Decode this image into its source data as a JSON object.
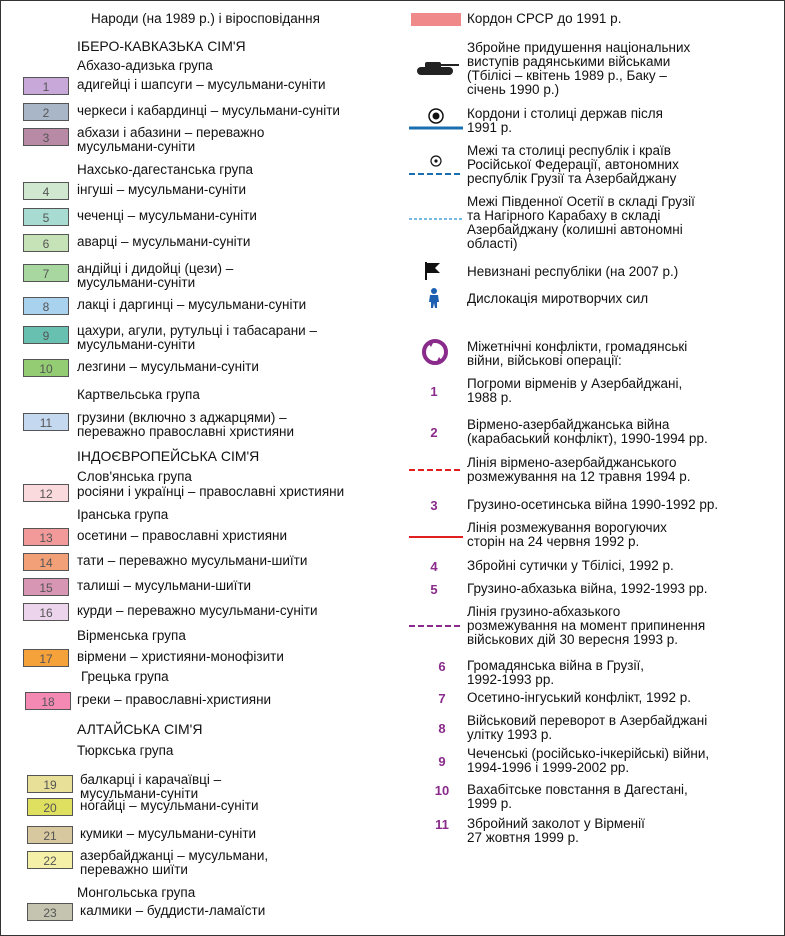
{
  "left": {
    "title": "Народи (на 1989 р.) і віросповідання",
    "fam1": "ІБЕРО-КАВКАЗЬКА СІМ'Я",
    "g_abkh": "Абхазо-адизька група",
    "g_nakh": "Нахсько-дагестанська група",
    "g_kart": "Картвельська група",
    "fam2": "ІНДОЄВРОПЕЙСЬКА СІМ'Я",
    "g_slav": "Слов'янська група",
    "g_iran": "Іранська група",
    "g_arm": "Вірменська група",
    "g_greek": "Грецька група",
    "fam3": "АЛТАЙСЬКА СІМ'Я",
    "g_turk": "Тюркська група",
    "g_mong": "Монгольська група",
    "items": [
      {
        "n": "1",
        "color": "#c8a8d8",
        "text": "адигейці і шапсуги – мусульмани-суніти"
      },
      {
        "n": "2",
        "color": "#a9b6c8",
        "text": "черкеси і кабардинці – мусульмани-суніти"
      },
      {
        "n": "3",
        "color": "#b88aa6",
        "text": "абхази і абазини – переважно\nмусульмани-суніти"
      },
      {
        "n": "4",
        "color": "#cfe8cf",
        "text": "інгуші – мусульмани-суніти"
      },
      {
        "n": "5",
        "color": "#a8dcd2",
        "text": "чеченці – мусульмани-суніти"
      },
      {
        "n": "6",
        "color": "#c6e3b8",
        "text": "аварці – мусульмани-суніти"
      },
      {
        "n": "7",
        "color": "#a8d8a0",
        "text": "андійці і дидойці (цези) –\nмусульмани-суніти"
      },
      {
        "n": "8",
        "color": "#a8d2ee",
        "text": "лакці і даргинці – мусульмани-суніти"
      },
      {
        "n": "9",
        "color": "#68c0b0",
        "text": "цахури, агули, рутульці і табасарани –\nмусульмани-суніти"
      },
      {
        "n": "10",
        "color": "#94cc74",
        "text": "лезгини – мусульмани-суніти"
      },
      {
        "n": "11",
        "color": "#c4d8f0",
        "text": "грузини (включно з аджарцями) –\nпереважно православні християни"
      },
      {
        "n": "12",
        "color": "#fadadc",
        "text": "росіяни і українці – православні християни"
      },
      {
        "n": "13",
        "color": "#f29a9a",
        "text": "осетини – православні християни"
      },
      {
        "n": "14",
        "color": "#f2a078",
        "text": "тати – переважно мусульмани-шиїти"
      },
      {
        "n": "15",
        "color": "#d696b4",
        "text": "талиші – мусульмани-шиїти"
      },
      {
        "n": "16",
        "color": "#ecd4ec",
        "text": "курди – переважно мусульмани-суніти"
      },
      {
        "n": "17",
        "color": "#f5a23a",
        "text": "вірмени – християни-монофізити"
      },
      {
        "n": "18",
        "color": "#f48ab4",
        "text": "греки – православні-християни"
      },
      {
        "n": "19",
        "color": "#e8e098",
        "text": "балкарці і карачаївці –\nмусульмани-суніти"
      },
      {
        "n": "20",
        "color": "#e0e060",
        "text": "ногайці – мусульмани-суніти"
      },
      {
        "n": "21",
        "color": "#d8c8a0",
        "text": "кумики – мусульмани-суніти"
      },
      {
        "n": "22",
        "color": "#f4f0a8",
        "text": "азербайджанці – мусульмани,\nпереважно шиїти"
      },
      {
        "n": "23",
        "color": "#c4c4b0",
        "text": "калмики – буддисти-ламаїсти"
      }
    ]
  },
  "right": {
    "ussr_border": "Кордон СРСР до 1991 р.",
    "suppression": "Збройне придушення національних\nвиступів радянськими військами\n(Тбілісі – квітень 1989 р., Баку –\nсічень 1990 р.)",
    "borders_after": "Кордони і столиці держав після\n1991 р.",
    "inner_borders": "Межі та столиці республік і країв\nРосійської Федерації, автономних\nреспублік Грузії та Азербайджану",
    "so_nk": "Межі Південної Осетії в складі Грузії\nта Нагірного Карабаху в складі\nАзербайджану (колишні автономні\nобласті)",
    "unrecognized": "Невизнані республіки (на 2007 р.)",
    "peacekeepers": "Дислокація миротворчих сил",
    "conflicts": "Міжетнічні конфлікти, громадянські\nвійни, військові операції:",
    "c1": {
      "n": "1",
      "text": "Погроми вірменів у Азербайджані,\n1988 р."
    },
    "c2": {
      "n": "2",
      "text": "Вірмено-азербайджанська війна\n(карабаський конфлікт), 1990-1994 рр."
    },
    "line_aa": "Лінія вірмено-азербайджанського\nрозмежування на 12 травня 1994 р.",
    "c3": {
      "n": "3",
      "text": "Грузино-осетинська війна 1990-1992 рр."
    },
    "line_hostile": "Лінія розмежування ворогуючих\nсторін на 24 червня 1992 р.",
    "c4": {
      "n": "4",
      "text": "Збройні сутички у Тбілісі, 1992 р."
    },
    "c5": {
      "n": "5",
      "text": "Грузино-абхазька війна, 1992-1993 рр."
    },
    "line_ga": "Лінія грузино-абхазького\nрозмежування на момент припинення\nвійськових дій 30 вересня 1993 р.",
    "c6": {
      "n": "6",
      "text": "Громадянська війна в Грузії,\n1992-1993 рр."
    },
    "c7": {
      "n": "7",
      "text": "Осетино-інгуський конфлікт, 1992 р."
    },
    "c8": {
      "n": "8",
      "text": "Військовий переворот в Азербайджані\nулітку 1993 р."
    },
    "c9": {
      "n": "9",
      "text": "Чеченські (російсько-ічкерійські) війни,\n1994-1996 і 1999-2002 рр."
    },
    "c10": {
      "n": "10",
      "text": "Вахабітське повстання в Дагестані,\n1999 р."
    },
    "c11": {
      "n": "11",
      "text": "Збройний заколот у Вірменії\n27 жовтня 1999 р."
    }
  },
  "colors": {
    "ussr": "#f08a8a",
    "border": "#1a6fb0",
    "thin_border": "#4aa3d8",
    "purple": "#8a2a8a",
    "red": "#e02020"
  },
  "icons": [
    "tank-icon",
    "circle-dot-capital-icon",
    "small-capital-icon",
    "flag-icon",
    "peacekeeper-icon",
    "conflict-ring-icon"
  ]
}
